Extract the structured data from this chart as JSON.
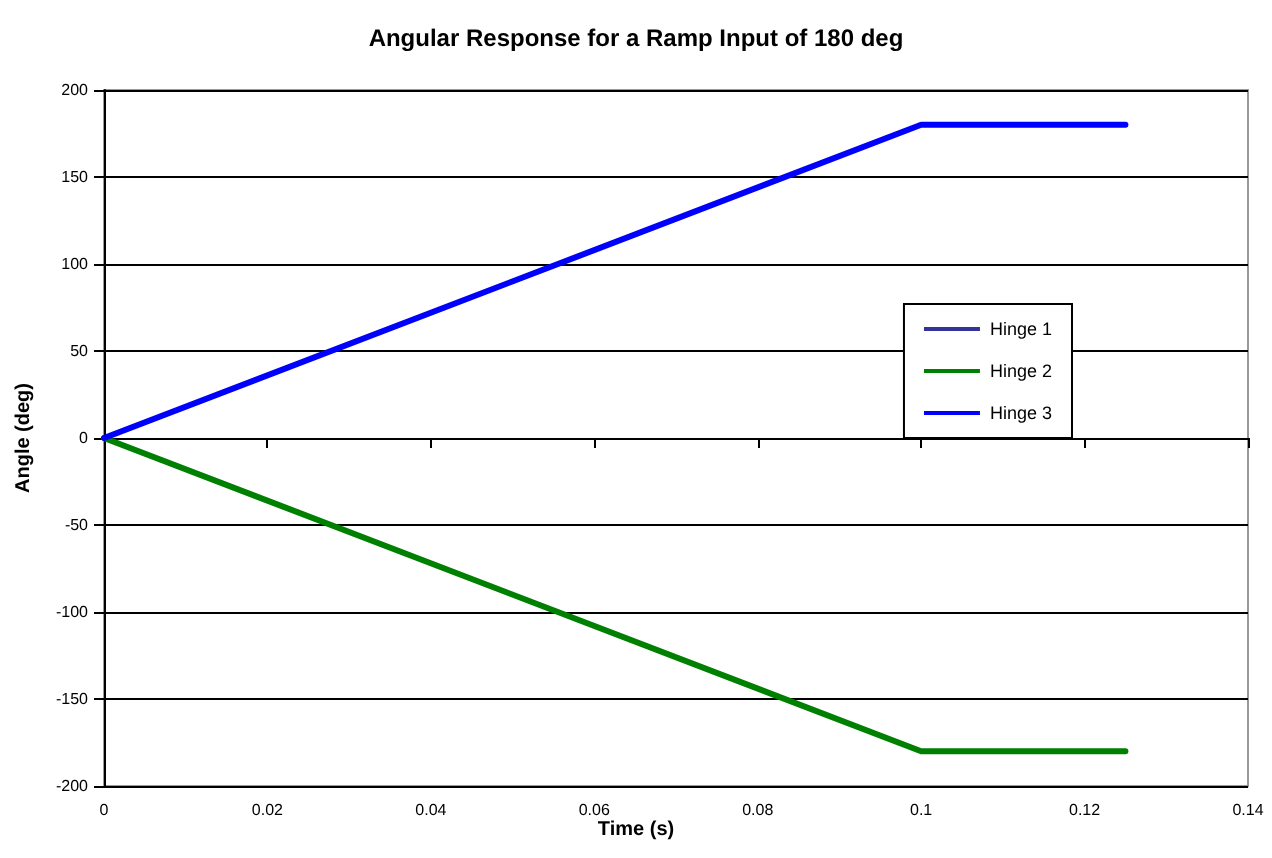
{
  "chart_data": {
    "type": "line",
    "title": "Angular Response for a Ramp Input of 180 deg",
    "xlabel": "Time (s)",
    "ylabel": "Angle (deg)",
    "x": [
      0,
      0.1,
      0.125
    ],
    "series": [
      {
        "name": "Hinge 1",
        "color": "#333399",
        "values": [
          null,
          null,
          null
        ]
      },
      {
        "name": "Hinge 2",
        "color": "#008000",
        "values": [
          0,
          -180,
          -180
        ]
      },
      {
        "name": "Hinge 3",
        "color": "#0000ff",
        "values": [
          0,
          180,
          180
        ]
      }
    ],
    "xlim": [
      0,
      0.14
    ],
    "xticks": [
      0,
      0.02,
      0.04,
      0.06,
      0.08,
      0.1,
      0.12,
      0.14
    ],
    "ylim": [
      -200,
      200
    ],
    "yticks": [
      -200,
      -150,
      -100,
      -50,
      0,
      50,
      100,
      150,
      200
    ],
    "grid": "y",
    "legend": "right",
    "marker": "none",
    "line_style": "solid"
  }
}
